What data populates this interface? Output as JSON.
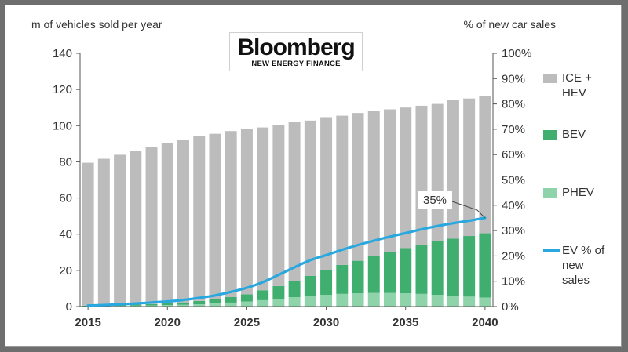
{
  "chart_data": {
    "type": "bar",
    "left_axis_title": "m of vehicles sold per year",
    "right_axis_title": "% of new car sales",
    "x": [
      2015,
      2016,
      2017,
      2018,
      2019,
      2020,
      2021,
      2022,
      2023,
      2024,
      2025,
      2026,
      2027,
      2028,
      2029,
      2030,
      2031,
      2032,
      2033,
      2034,
      2035,
      2036,
      2037,
      2038,
      2039,
      2040
    ],
    "x_tick_labels": [
      "2015",
      "2020",
      "2025",
      "2030",
      "2035",
      "2040"
    ],
    "x_tick_values": [
      2015,
      2020,
      2025,
      2030,
      2035,
      2040
    ],
    "y_left_ticks": [
      "0",
      "20",
      "40",
      "60",
      "80",
      "100",
      "120",
      "140"
    ],
    "y_left_lim": [
      0,
      140
    ],
    "y_right_ticks": [
      "0%",
      "10%",
      "20%",
      "30%",
      "40%",
      "50%",
      "60%",
      "70%",
      "80%",
      "90%",
      "100%"
    ],
    "y_right_lim": [
      0,
      100
    ],
    "stacked": true,
    "series": [
      {
        "name": "PHEV",
        "axis": "left",
        "color": "#8fd3ab",
        "values": [
          0.2,
          0.3,
          0.4,
          0.5,
          0.6,
          0.8,
          1.0,
          1.3,
          1.7,
          2.2,
          2.8,
          3.5,
          4.3,
          5.2,
          6.0,
          6.5,
          7.0,
          7.3,
          7.5,
          7.5,
          7.3,
          7.0,
          6.5,
          6.0,
          5.5,
          5.0
        ]
      },
      {
        "name": "BEV",
        "axis": "left",
        "color": "#3fae6f",
        "values": [
          0.3,
          0.4,
          0.5,
          0.6,
          0.8,
          1.0,
          1.3,
          1.8,
          2.3,
          3.0,
          4.0,
          5.5,
          7.0,
          9.0,
          11.0,
          13.5,
          16.0,
          18.0,
          20.5,
          22.5,
          25.0,
          27.0,
          29.5,
          31.5,
          33.5,
          35.5
        ]
      },
      {
        "name": "ICE +\nHEV",
        "axis": "left",
        "color": "#bcbcbc",
        "values": [
          79.0,
          81.0,
          83.0,
          85.0,
          87.0,
          88.5,
          90.0,
          91.0,
          91.5,
          91.8,
          91.2,
          90.0,
          89.2,
          87.8,
          85.8,
          84.7,
          82.5,
          81.7,
          80.0,
          79.0,
          77.7,
          77.0,
          76.0,
          76.5,
          76.0,
          75.8
        ]
      },
      {
        "name": "EV % of\nnew\nsales",
        "axis": "right",
        "type": "line",
        "color": "#29a8e0",
        "values": [
          0.4,
          0.6,
          0.9,
          1.2,
          1.6,
          2.0,
          2.6,
          3.4,
          4.4,
          5.8,
          7.4,
          9.6,
          12.5,
          15.5,
          18.3,
          20.3,
          22.4,
          24.3,
          26.0,
          27.6,
          29.0,
          30.5,
          31.8,
          32.9,
          33.9,
          35.0
        ]
      }
    ],
    "annotation": {
      "text": "35%",
      "x": 2040,
      "y": 35,
      "axis": "right"
    },
    "legend": "right",
    "grid": false,
    "logo": {
      "main": "Bloomberg",
      "sub": "NEW ENERGY FINANCE"
    }
  }
}
